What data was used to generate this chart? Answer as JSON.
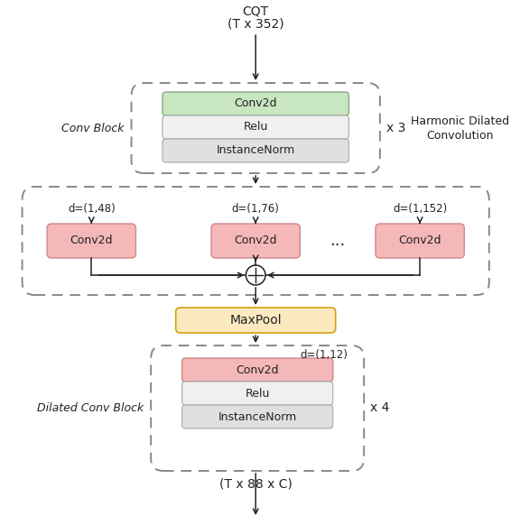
{
  "bg_color": "#ffffff",
  "color_conv2d_green": "#c8e6c0",
  "color_conv2d_red": "#f4b8b8",
  "color_relu": "#f0f0f0",
  "color_instance_norm": "#e0e0e0",
  "color_maxpool_fill": "#fde9c0",
  "color_maxpool_edge": "#d4a010",
  "color_dashed": "#888888",
  "color_arrow": "#222222",
  "color_text": "#222222",
  "cqt_label": "CQT",
  "cqt_size_label": "(T x 352)",
  "output_label": "(T x 88 x C)",
  "conv_block_label": "Conv Block",
  "harmonic_label1": "Harmonic Dilated",
  "harmonic_label2": "Convolution",
  "dilated_conv_label": "Dilated Conv Block",
  "x3_label": "x 3",
  "x4_label": "x 4",
  "d_labels": [
    "d=(1,48)",
    "d=(1,76)",
    "d=(1,152)"
  ],
  "d_bottom_label": "d=(1,12)",
  "layers_conv_block": [
    "Conv2d",
    "Relu",
    "InstanceNorm"
  ],
  "layers_dilated_block": [
    "Conv2d",
    "Relu",
    "InstanceNorm"
  ],
  "harmonic_box_labels": [
    "Conv2d",
    "Conv2d",
    "Conv2d"
  ],
  "dots_label": "...",
  "maxpool_label": "MaxPool"
}
